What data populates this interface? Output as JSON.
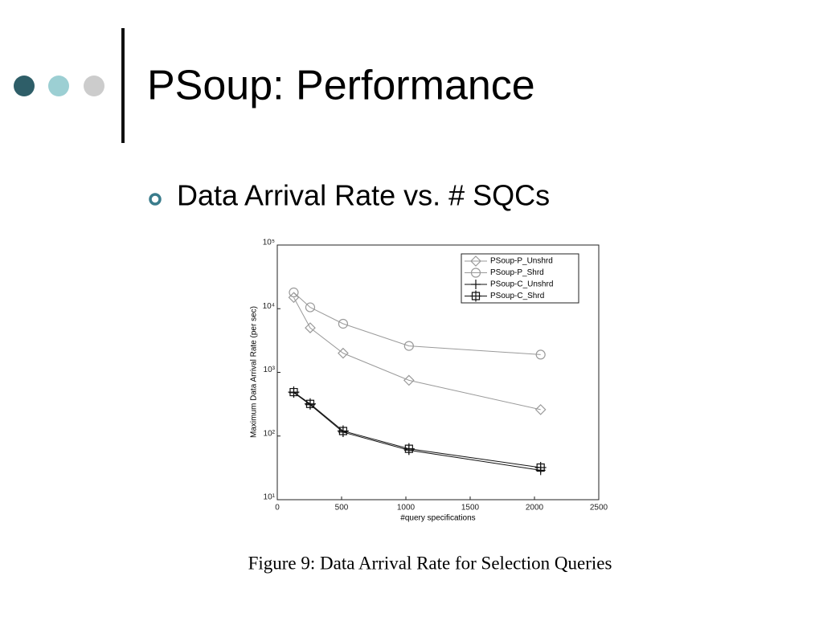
{
  "slide": {
    "title": "PSoup: Performance",
    "bullet": "Data Arrival Rate vs. # SQCs"
  },
  "chart_data": {
    "type": "line",
    "caption": "Figure 9: Data Arrival Rate for Selection Queries",
    "xlabel": "#query specifications",
    "ylabel": "Maximum Data Arrival Rate (per sec)",
    "x": [
      128,
      256,
      512,
      1024,
      2048
    ],
    "series": [
      {
        "name": "PSoup-P_Unshrd",
        "color": "#9a9a9a",
        "marker": "diamond",
        "values": [
          15000,
          5000,
          2000,
          750,
          260
        ]
      },
      {
        "name": "PSoup-P_Shrd",
        "color": "#9a9a9a",
        "marker": "circle",
        "values": [
          18000,
          10500,
          5800,
          2600,
          1900
        ]
      },
      {
        "name": "PSoup-C_Unshrd",
        "color": "#111111",
        "marker": "plus",
        "values": [
          480,
          310,
          115,
          60,
          29
        ]
      },
      {
        "name": "PSoup-C_Shrd",
        "color": "#111111",
        "marker": "square",
        "values": [
          490,
          320,
          120,
          63,
          32
        ]
      }
    ],
    "xlim": [
      0,
      2500
    ],
    "xticks": [
      0,
      500,
      1000,
      1500,
      2000,
      2500
    ],
    "ylim": [
      10,
      100000
    ],
    "ylog": true,
    "yticks": [
      {
        "value": 10,
        "label": "10¹"
      },
      {
        "value": 100,
        "label": "10²"
      },
      {
        "value": 1000,
        "label": "10³"
      },
      {
        "value": 10000,
        "label": "10⁴"
      },
      {
        "value": 100000,
        "label": "10⁵"
      }
    ],
    "legend": "upper right"
  }
}
